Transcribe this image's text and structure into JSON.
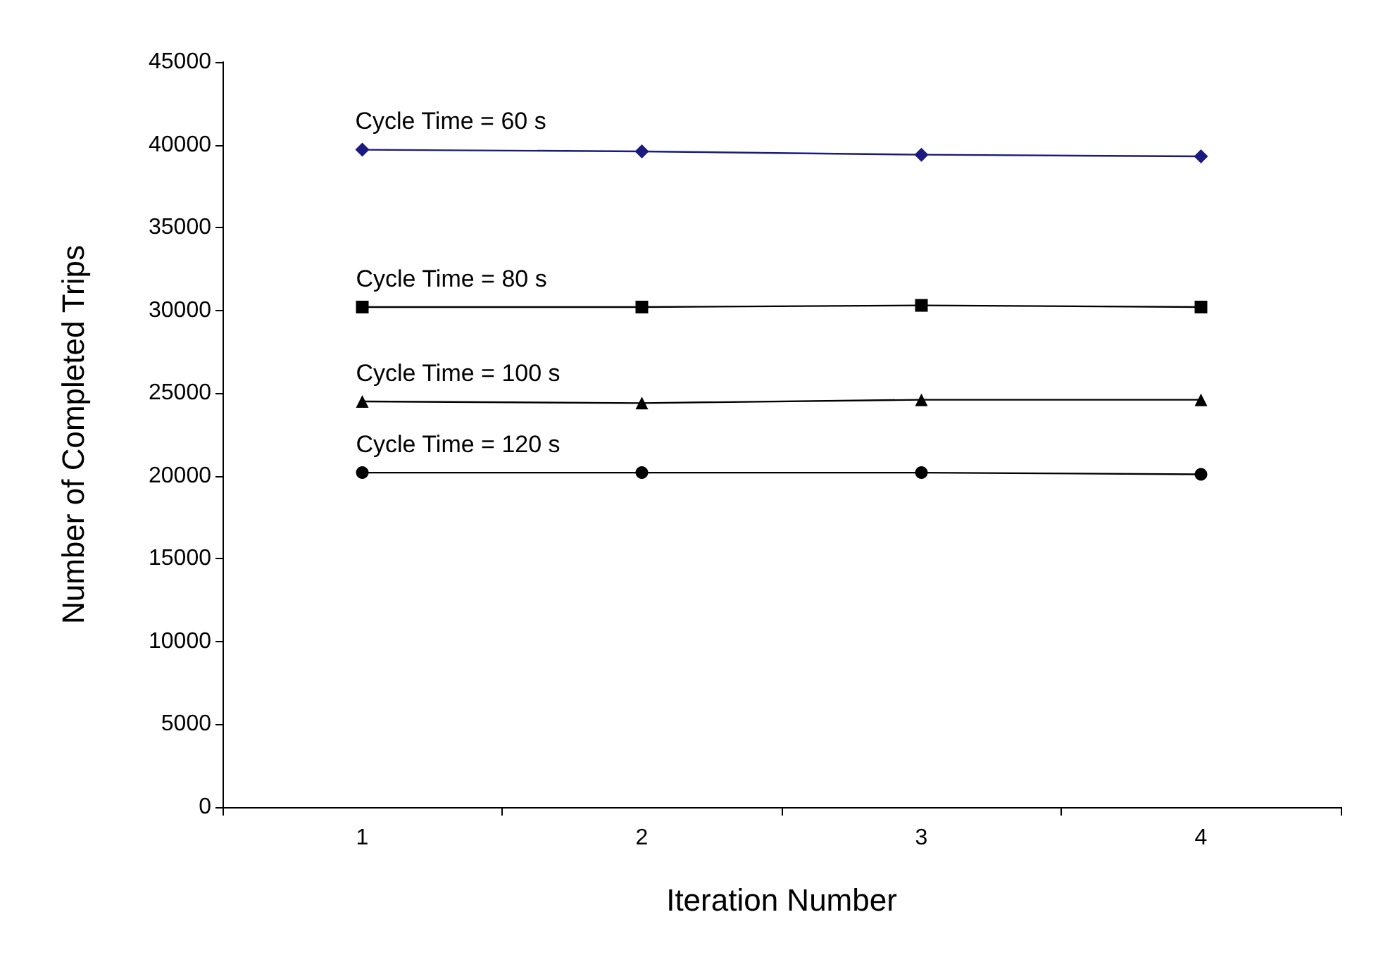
{
  "chart_data": {
    "type": "line",
    "xlabel": "Iteration Number",
    "ylabel": "Number of Completed Trips",
    "categories": [
      "1",
      "2",
      "3",
      "4"
    ],
    "series": [
      {
        "name": "Cycle Time = 60 s",
        "color": "#1a1a80",
        "marker": "diamond",
        "values": [
          39700,
          39600,
          39400,
          39300
        ]
      },
      {
        "name": "Cycle Time = 80 s",
        "color": "#000000",
        "marker": "square",
        "values": [
          30200,
          30200,
          30300,
          30200
        ]
      },
      {
        "name": "Cycle Time = 100 s",
        "color": "#000000",
        "marker": "triangle",
        "values": [
          24500,
          24400,
          24600,
          24600
        ]
      },
      {
        "name": "Cycle Time = 120 s",
        "color": "#000000",
        "marker": "circle",
        "values": [
          20200,
          20200,
          20200,
          20100
        ]
      }
    ],
    "ylim": [
      0,
      45000
    ],
    "yticks": [
      0,
      5000,
      10000,
      15000,
      20000,
      25000,
      30000,
      35000,
      40000,
      45000
    ],
    "grid": false,
    "legend": false
  }
}
